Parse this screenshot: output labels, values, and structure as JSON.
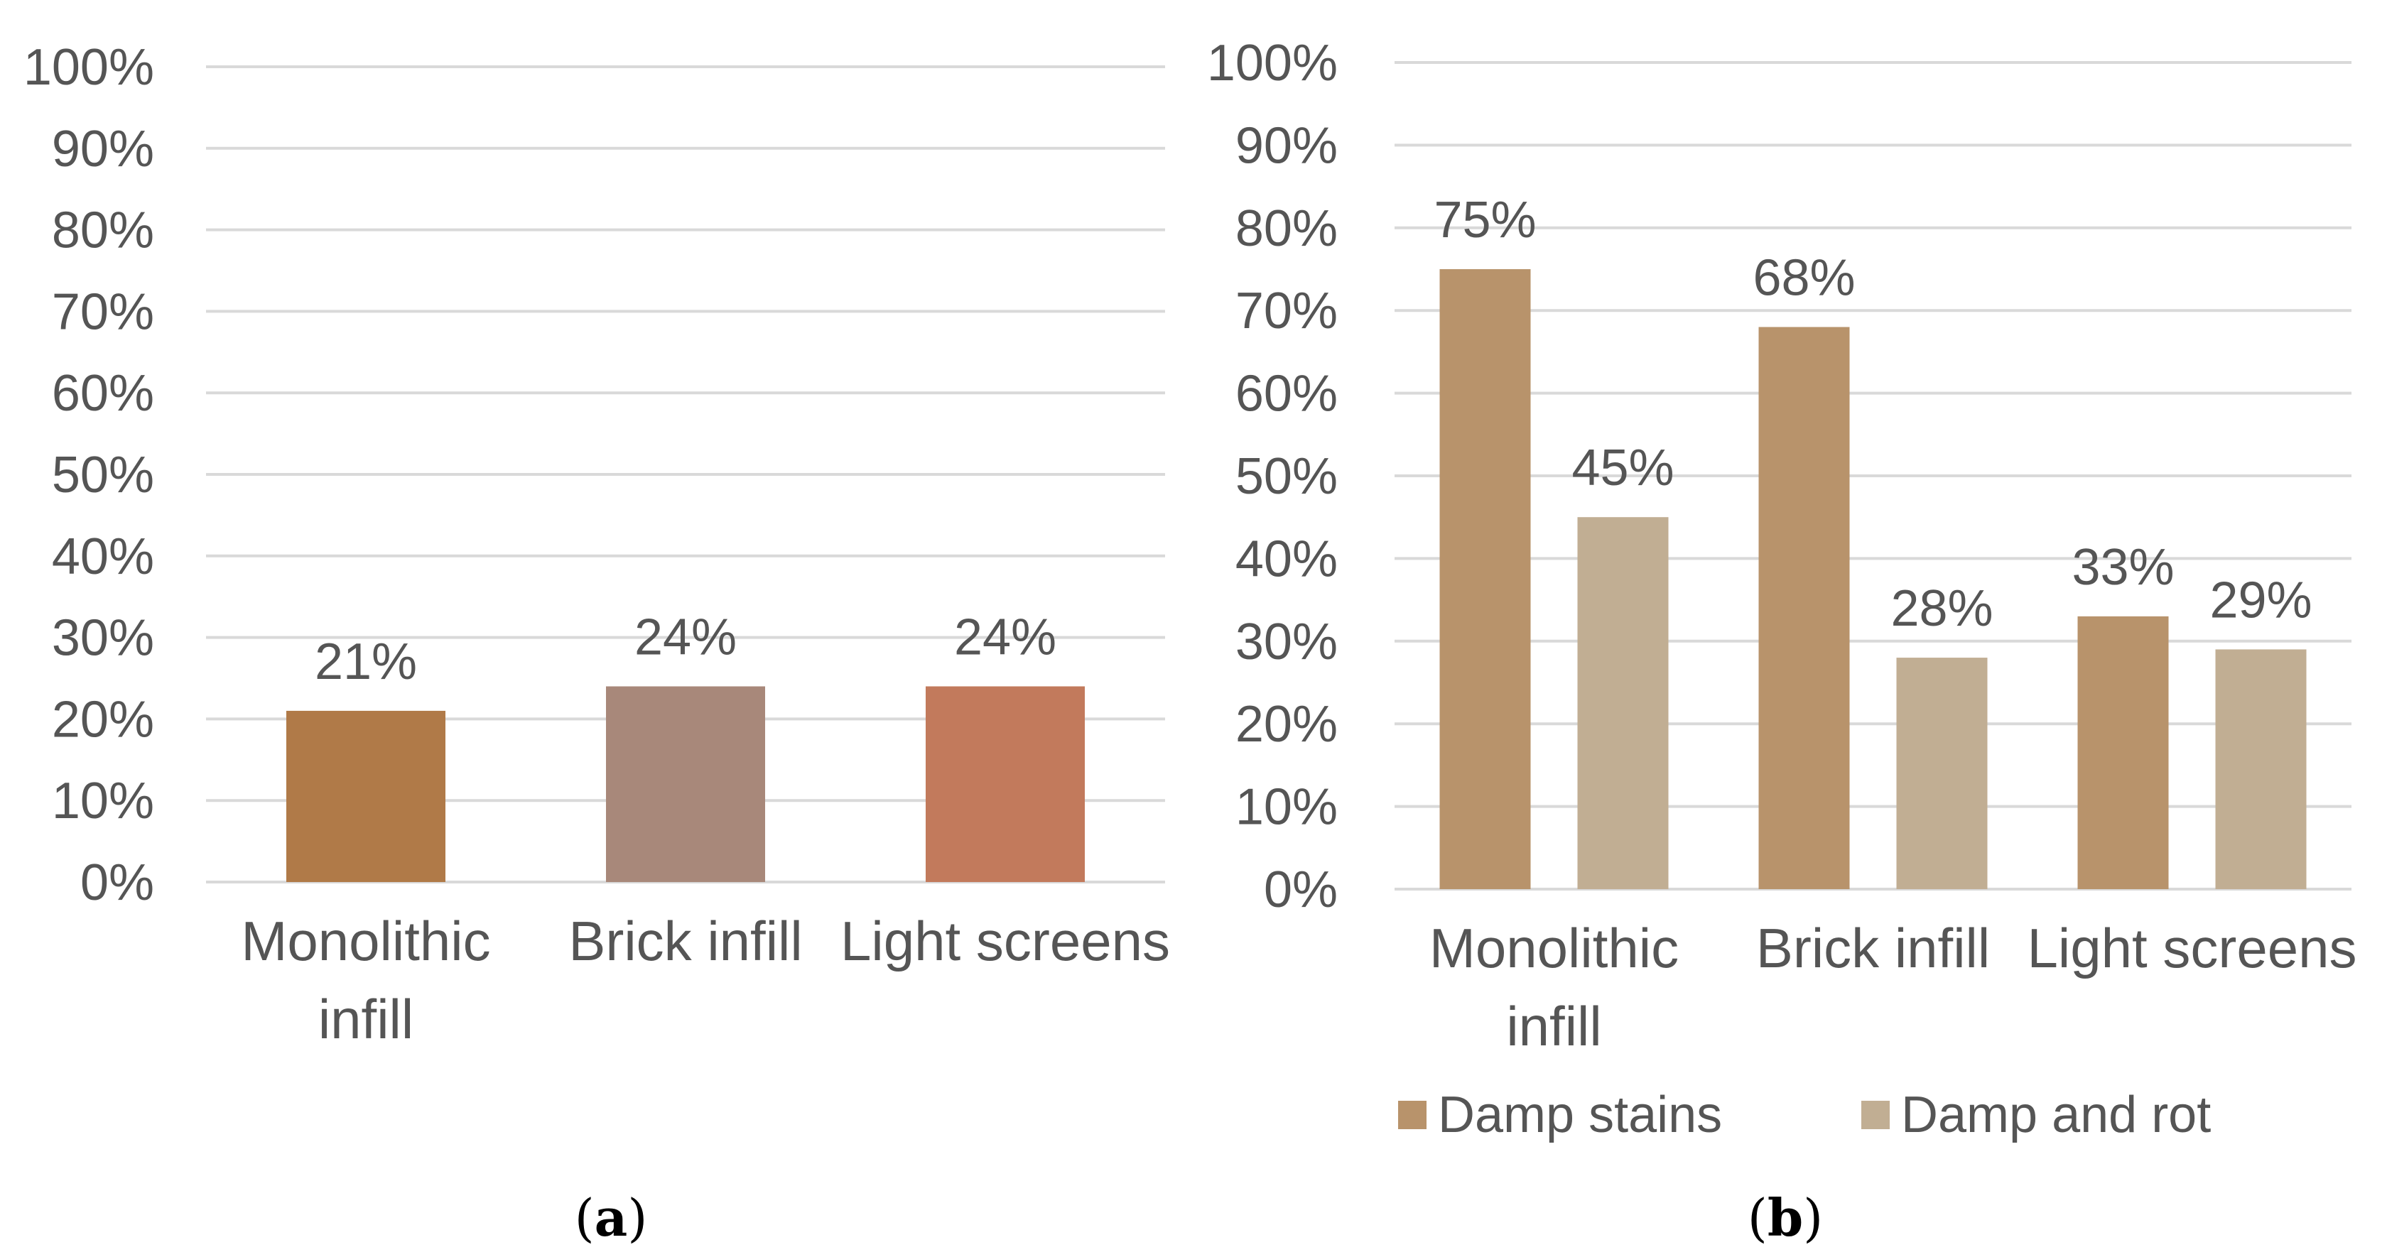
{
  "chart_data": [
    {
      "type": "bar",
      "panel_label": "a",
      "categories": [
        [
          "Monolithic",
          "infill"
        ],
        [
          "Brick infill"
        ],
        [
          "Light screens"
        ]
      ],
      "category_names": [
        "Monolithic infill",
        "Brick infill",
        "Light screens"
      ],
      "series": [
        {
          "name": "",
          "values": [
            21,
            24,
            24
          ],
          "labels": [
            "21%",
            "24%",
            "24%"
          ],
          "colors": [
            "#b07a48",
            "#a8887a",
            "#c27a5c"
          ]
        }
      ],
      "ylim": [
        0,
        100
      ],
      "yticks": [
        "0%",
        "10%",
        "20%",
        "30%",
        "40%",
        "50%",
        "60%",
        "70%",
        "80%",
        "90%",
        "100%"
      ],
      "grid": true,
      "legend": null
    },
    {
      "type": "bar",
      "panel_label": "b",
      "categories": [
        [
          "Monolithic",
          "infill"
        ],
        [
          "Brick infill"
        ],
        [
          "Light screens"
        ]
      ],
      "category_names": [
        "Monolithic infill",
        "Brick infill",
        "Light screens"
      ],
      "series": [
        {
          "name": "Damp stains",
          "values": [
            75,
            68,
            33
          ],
          "labels": [
            "75%",
            "68%",
            "33%"
          ],
          "color": "#b8936b"
        },
        {
          "name": "Damp and rot",
          "values": [
            45,
            28,
            29
          ],
          "labels": [
            "45%",
            "28%",
            "29%"
          ],
          "color": "#c1ae93"
        }
      ],
      "ylim": [
        0,
        100
      ],
      "yticks": [
        "0%",
        "10%",
        "20%",
        "30%",
        "40%",
        "50%",
        "60%",
        "70%",
        "80%",
        "90%",
        "100%"
      ],
      "grid": true,
      "legend": "bottom-left"
    }
  ],
  "colors": {
    "grid": "#d9d9d9",
    "text": "#555555"
  }
}
